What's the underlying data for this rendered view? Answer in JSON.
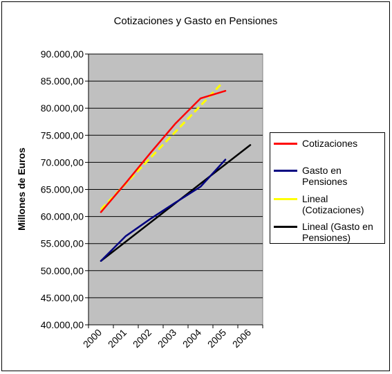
{
  "chart_data": {
    "type": "line",
    "title": "Cotizaciones y Gasto en Pensiones",
    "ylabel": "Millones de Euros",
    "xlabel": "",
    "ylim": [
      40000,
      90000
    ],
    "y_ticks": [
      "40.000,00",
      "45.000,00",
      "50.000,00",
      "55.000,00",
      "60.000,00",
      "65.000,00",
      "70.000,00",
      "75.000,00",
      "80.000,00",
      "85.000,00",
      "90.000,00"
    ],
    "x_ticks": [
      "2000",
      "2001",
      "2002",
      "2003",
      "2004",
      "2005",
      "2006"
    ],
    "plot_background": "#c0c0c0",
    "grid": true,
    "legend_position": "right",
    "series": [
      {
        "name": "Cotizaciones",
        "color": "#ff0000",
        "x": [
          2000.5,
          2001.5,
          2002.5,
          2003.5,
          2004.5,
          2005.5
        ],
        "values": [
          60800,
          66200,
          71800,
          77200,
          81800,
          83200
        ]
      },
      {
        "name": "Gasto en Pensiones",
        "color": "#000080",
        "x": [
          2000.5,
          2001.5,
          2002.5,
          2003.5,
          2004.5,
          2005.5
        ],
        "values": [
          51800,
          56400,
          59600,
          62600,
          65500,
          70500
        ]
      },
      {
        "name": "Lineal (Cotizaciones)",
        "color": "#ffff00",
        "dashed": true,
        "x": [
          2000.5,
          2005.3
        ],
        "values": [
          61300,
          84300
        ]
      },
      {
        "name": "Lineal (Gasto en Pensiones)",
        "color": "#000000",
        "x": [
          2000.5,
          2006.5
        ],
        "values": [
          51800,
          73200
        ]
      }
    ]
  },
  "legend": {
    "items": [
      {
        "label": "Cotizaciones"
      },
      {
        "label": "Gasto en Pensiones"
      },
      {
        "label": "Lineal (Cotizaciones)"
      },
      {
        "label": "Lineal (Gasto en Pensiones)"
      }
    ]
  }
}
